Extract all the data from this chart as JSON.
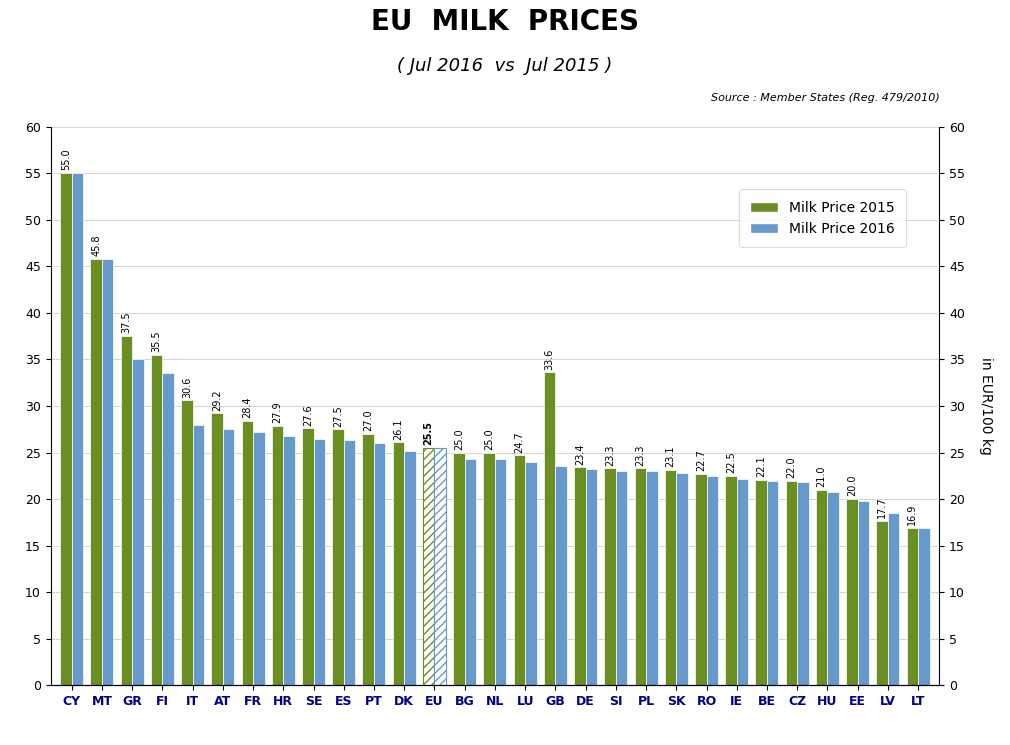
{
  "countries": [
    "CY",
    "MT",
    "GR",
    "FI",
    "IT",
    "AT",
    "FR",
    "HR",
    "SE",
    "ES",
    "PT",
    "DK",
    "EU",
    "BG",
    "NL",
    "LU",
    "GB",
    "DE",
    "SI",
    "PL",
    "SK",
    "RO",
    "IE",
    "BE",
    "CZ",
    "HU",
    "EE",
    "LV",
    "LT"
  ],
  "price_2015": [
    55.0,
    45.8,
    37.5,
    35.5,
    30.6,
    29.2,
    28.4,
    27.9,
    27.6,
    27.5,
    27.0,
    26.1,
    25.5,
    25.0,
    25.0,
    24.7,
    33.6,
    23.4,
    23.3,
    23.3,
    23.1,
    22.7,
    22.5,
    22.1,
    22.0,
    21.0,
    20.0,
    17.7,
    16.9
  ],
  "price_2016": [
    55.0,
    45.8,
    35.0,
    33.5,
    28.0,
    27.5,
    27.2,
    26.8,
    26.5,
    26.3,
    26.0,
    25.2,
    25.5,
    24.3,
    24.3,
    24.0,
    23.6,
    23.2,
    23.0,
    23.0,
    22.8,
    22.5,
    22.2,
    22.0,
    21.8,
    20.8,
    19.8,
    18.5,
    16.9
  ],
  "eu_index": 12,
  "title1": "EU  MILK  PRICES",
  "title2": "( Jul 2016  vs  Jul 2015 )",
  "source": "Source : Member States (Reg. 479/2010)",
  "ylabel": "in EUR/100 kg",
  "legend_2015": "Milk Price 2015",
  "legend_2016": "Milk Price 2016",
  "color_2015": "#6B8E23",
  "color_2016": "#6699CC",
  "ylim": [
    0,
    60
  ],
  "yticks": [
    0,
    5,
    10,
    15,
    20,
    25,
    30,
    35,
    40,
    45,
    50,
    55,
    60
  ],
  "bar_labels": [
    55.0,
    45.8,
    37.5,
    35.5,
    30.6,
    29.2,
    28.4,
    27.9,
    27.6,
    27.5,
    27.0,
    26.1,
    25.5,
    25.0,
    25.0,
    24.7,
    33.6,
    23.4,
    23.3,
    23.3,
    23.1,
    22.7,
    22.5,
    22.1,
    22.0,
    21.0,
    20.0,
    17.7,
    16.9
  ]
}
